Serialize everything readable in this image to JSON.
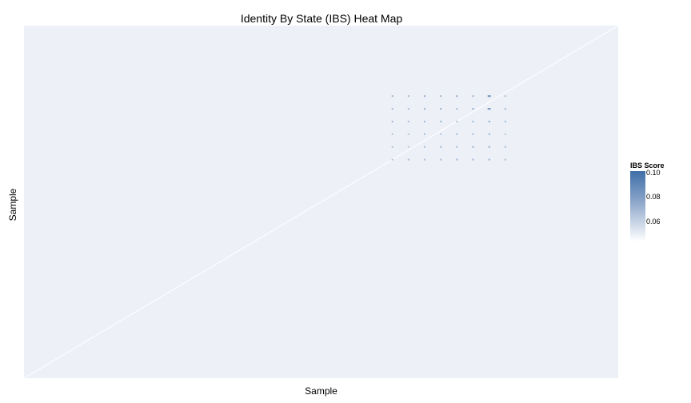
{
  "chart_data": {
    "type": "heatmap",
    "title": "Identity By State (IBS) Heat Map",
    "xlabel": "Sample",
    "ylabel": "Sample",
    "legend": {
      "title": "IBS Score",
      "ticks": [
        "0.10",
        "0.08",
        "0.06"
      ],
      "tick_values": [
        0.1,
        0.08,
        0.06
      ],
      "range": [
        0.045,
        0.101
      ],
      "placement": "right",
      "colors": {
        "low": "#ffffff",
        "mid": "#8fa8cb",
        "high": "#3f6fa8"
      }
    },
    "background_value": 0.05,
    "diagonal_value": 0.045,
    "grid": false,
    "cluster": {
      "x_fraction_range": [
        0.62,
        0.81
      ],
      "y_fraction_range": [
        0.2,
        0.38
      ],
      "values": [
        [
          0.072,
          0.07,
          0.074,
          0.071,
          0.075,
          0.073,
          0.085,
          0.068
        ],
        [
          0.07,
          0.068,
          0.072,
          0.074,
          0.07,
          0.076,
          0.083,
          0.072
        ],
        [
          0.071,
          0.069,
          0.07,
          0.072,
          0.068,
          0.071,
          0.075,
          0.07
        ],
        [
          0.068,
          0.066,
          0.07,
          0.067,
          0.072,
          0.07,
          0.073,
          0.066
        ],
        [
          0.067,
          0.065,
          0.068,
          0.07,
          0.069,
          0.073,
          0.076,
          0.071
        ],
        [
          0.066,
          0.069,
          0.067,
          0.068,
          0.071,
          0.07,
          0.074,
          0.068
        ]
      ]
    }
  }
}
